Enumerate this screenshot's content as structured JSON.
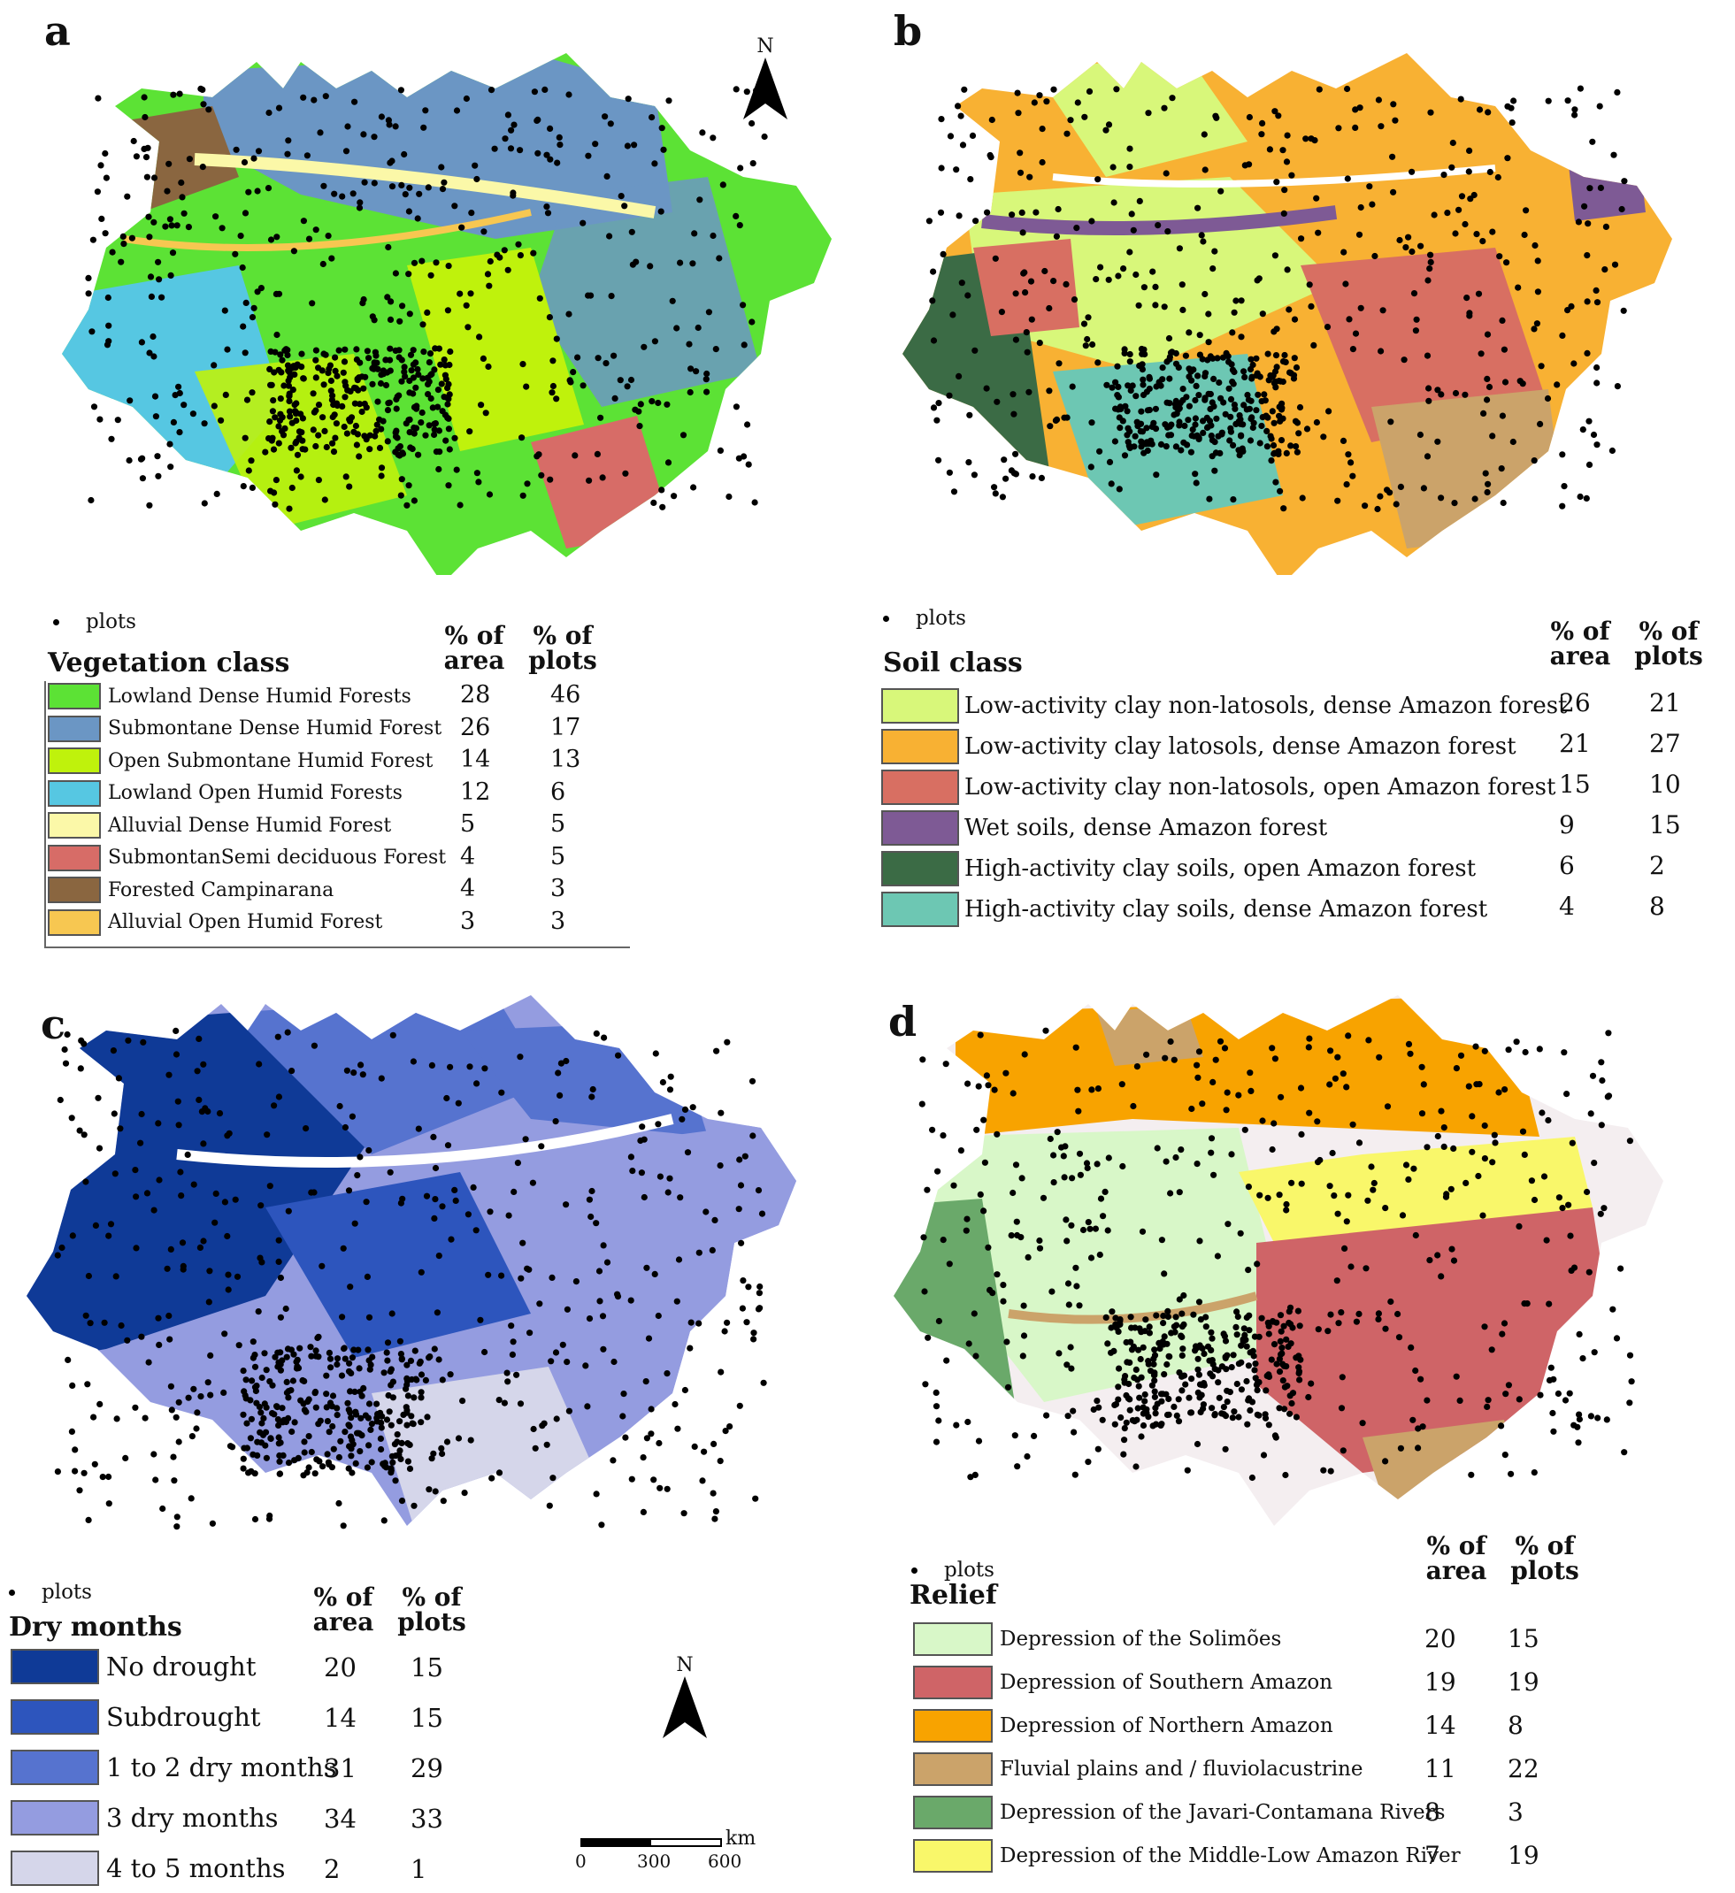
{
  "panels": {
    "a": {
      "label": "a",
      "north": "N",
      "plots_label": "plots",
      "legend_title": "Vegetation class",
      "col_area": "% of area",
      "col_plots": "% of plots",
      "items": [
        {
          "name": "Lowland Dense Humid Forests",
          "area": "28",
          "plots": "46",
          "color": "#5ce235"
        },
        {
          "name": "Submontane Dense Humid Forest",
          "area": "26",
          "plots": "17",
          "color": "#6b96c4"
        },
        {
          "name": "Open Submontane Humid Forest",
          "area": "14",
          "plots": "13",
          "color": "#bff20c"
        },
        {
          "name": "Lowland Open Humid Forests",
          "area": "12",
          "plots": "6",
          "color": "#56c7e2"
        },
        {
          "name": "Alluvial Dense Humid Forest",
          "area": "5",
          "plots": "5",
          "color": "#fbf8a8"
        },
        {
          "name": "SubmontanSemi deciduous Forest",
          "area": "4",
          "plots": "5",
          "color": "#d76c67"
        },
        {
          "name": "Forested Campinarana",
          "area": "4",
          "plots": "3",
          "color": "#8a6640"
        },
        {
          "name": "Alluvial Open Humid Forest",
          "area": "3",
          "plots": "3",
          "color": "#f7c751"
        }
      ]
    },
    "b": {
      "label": "b",
      "plots_label": "plots",
      "legend_title": "Soil class",
      "col_area": "% of area",
      "col_plots": "% of plots",
      "items": [
        {
          "name": "Low-activity clay non-latosols, dense Amazon forest",
          "area": "26",
          "plots": "21",
          "color": "#d8f77a"
        },
        {
          "name": "Low-activity clay latosols, dense Amazon forest",
          "area": "21",
          "plots": "27",
          "color": "#f8b133"
        },
        {
          "name": "Low-activity clay non-latosols, open Amazon forest",
          "area": "15",
          "plots": "10",
          "color": "#d86f62"
        },
        {
          "name": "Wet soils, dense Amazon forest",
          "area": "9",
          "plots": "15",
          "color": "#7e5a95"
        },
        {
          "name": "High-activity clay soils, open Amazon forest",
          "area": "6",
          "plots": "2",
          "color": "#3b6b45"
        },
        {
          "name": "High-activity clay soils, dense Amazon forest",
          "area": "4",
          "plots": "8",
          "color": "#6dc7b3"
        }
      ]
    },
    "c": {
      "label": "c",
      "plots_label": "plots",
      "legend_title": "Dry months",
      "col_area": "% of area",
      "col_plots": "% of plots",
      "items": [
        {
          "name": "No drought",
          "area": "20",
          "plots": "15",
          "color": "#0f3a97"
        },
        {
          "name": "Subdrought",
          "area": "14",
          "plots": "15",
          "color": "#2d55bd"
        },
        {
          "name": "1 to 2 dry months",
          "area": "31",
          "plots": "29",
          "color": "#5673cf"
        },
        {
          "name": "3 dry months",
          "area": "34",
          "plots": "33",
          "color": "#949ce0"
        },
        {
          "name": "4 to 5 months",
          "area": "2",
          "plots": "1",
          "color": "#d5d6ea"
        }
      ],
      "north": "N",
      "scale": {
        "unit": "km",
        "ticks": [
          "0",
          "300",
          "600"
        ]
      }
    },
    "d": {
      "label": "d",
      "plots_label": "plots",
      "legend_title": "Relief",
      "col_area": "% of area",
      "col_plots": "% of plots",
      "items": [
        {
          "name": "Depression of the Solimões",
          "area": "20",
          "plots": "15",
          "color": "#d8f7c8"
        },
        {
          "name": "Depression of Southern Amazon",
          "area": "19",
          "plots": "19",
          "color": "#cf6467"
        },
        {
          "name": "Depression of Northern Amazon",
          "area": "14",
          "plots": "8",
          "color": "#f8a300"
        },
        {
          "name": "Fluvial plains and / fluviolacustrine",
          "area": "11",
          "plots": "22",
          "color": "#cba36a"
        },
        {
          "name": "Depression of the Javari-Contamana Rivers",
          "area": "8",
          "plots": "3",
          "color": "#6aa96a"
        },
        {
          "name": "Depression of the Middle-Low Amazon River",
          "area": "7",
          "plots": "19",
          "color": "#f9f76a"
        }
      ]
    }
  }
}
